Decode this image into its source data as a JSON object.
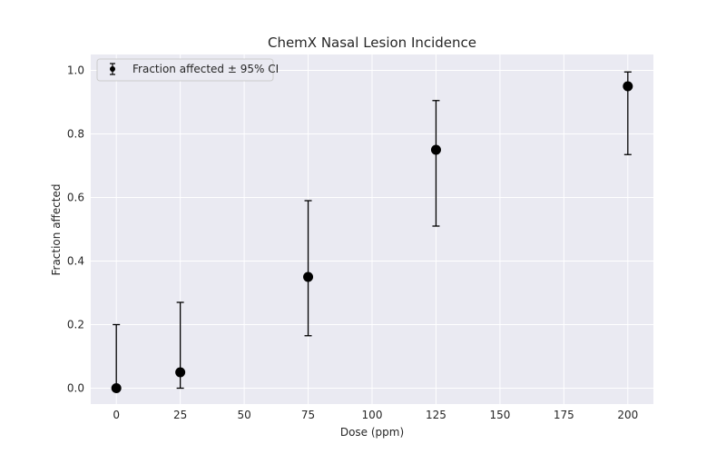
{
  "chart_data": {
    "type": "scatter",
    "title": "ChemX Nasal Lesion Incidence",
    "xlabel": "Dose (ppm)",
    "ylabel": "Fraction affected",
    "xlim": [
      -10,
      210
    ],
    "ylim": [
      -0.05,
      1.05
    ],
    "xticks": [
      0,
      25,
      50,
      75,
      100,
      125,
      150,
      175,
      200
    ],
    "yticks": [
      "0.0",
      "0.2",
      "0.4",
      "0.6",
      "0.8",
      "1.0"
    ],
    "grid": true,
    "legend_position": "top-left",
    "series": [
      {
        "name": "Fraction affected ± 95% CI",
        "color": "#000000",
        "x": [
          0,
          25,
          75,
          125,
          200
        ],
        "y": [
          0.0,
          0.05,
          0.35,
          0.75,
          0.95
        ],
        "ci_low": [
          0.0,
          0.0,
          0.165,
          0.51,
          0.735
        ],
        "ci_high": [
          0.2,
          0.27,
          0.59,
          0.905,
          0.995
        ]
      }
    ]
  },
  "style": {
    "plot_background": "#eaeaf2",
    "grid_color": "#ffffff",
    "marker_color": "#000000"
  }
}
